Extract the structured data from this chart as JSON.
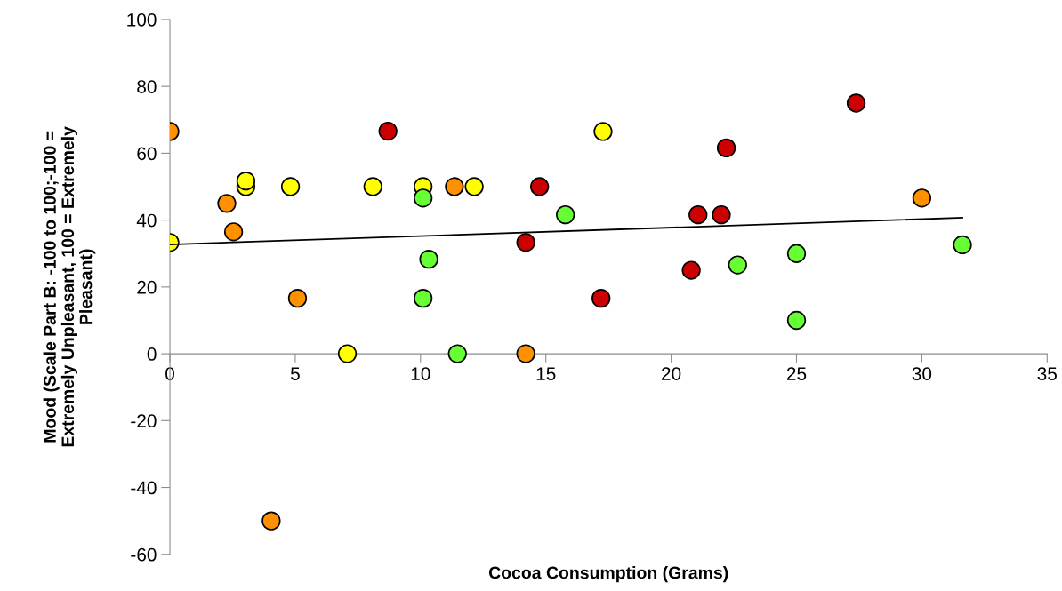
{
  "chart_data": {
    "type": "scatter",
    "xlabel": "Cocoa Consumption (Grams)",
    "ylabel": "Mood (Scale Part B: -100 to 100;-100 =\nExtremely Unpleasant, 100 = Extremely\nPleasant)",
    "xlim": [
      0,
      35
    ],
    "ylim": [
      -60,
      100
    ],
    "xticks": [
      0,
      5,
      10,
      15,
      20,
      25,
      30,
      35
    ],
    "yticks": [
      -60,
      -40,
      -20,
      0,
      20,
      40,
      60,
      80,
      100
    ],
    "grid": false,
    "legend": false,
    "marker": "circle",
    "series": [
      {
        "color": "#ff9100",
        "x": [
          0,
          2.27,
          2.54,
          4.04,
          5.09,
          11.35,
          14.2,
          30.0
        ],
        "values": [
          66.5,
          45,
          36.5,
          -50,
          16.6,
          50,
          0,
          46.6
        ]
      },
      {
        "color": "#ffff00",
        "x": [
          0,
          3.03,
          3.03,
          4.81,
          7.08,
          8.1,
          10.1,
          12.14,
          17.28
        ],
        "values": [
          33.3,
          50,
          51.7,
          50,
          0,
          50,
          50,
          50,
          66.5
        ]
      },
      {
        "color": "#cc0000",
        "x": [
          8.7,
          14.2,
          14.75,
          17.2,
          20.8,
          21.07,
          22.0,
          22.2,
          27.38
        ],
        "values": [
          66.6,
          33.3,
          50,
          16.6,
          25,
          41.6,
          41.6,
          61.6,
          75
        ]
      },
      {
        "color": "#66ff33",
        "x": [
          10.1,
          10.1,
          10.33,
          11.47,
          15.78,
          22.65,
          25,
          25,
          31.62
        ],
        "values": [
          46.6,
          16.6,
          28.3,
          0,
          41.6,
          26.6,
          30,
          10,
          32.6
        ]
      },
      {
        "type": "line",
        "color": "#000000",
        "marker": "none",
        "x": [
          0,
          31.62
        ],
        "values": [
          32.7,
          40.7
        ]
      }
    ]
  }
}
